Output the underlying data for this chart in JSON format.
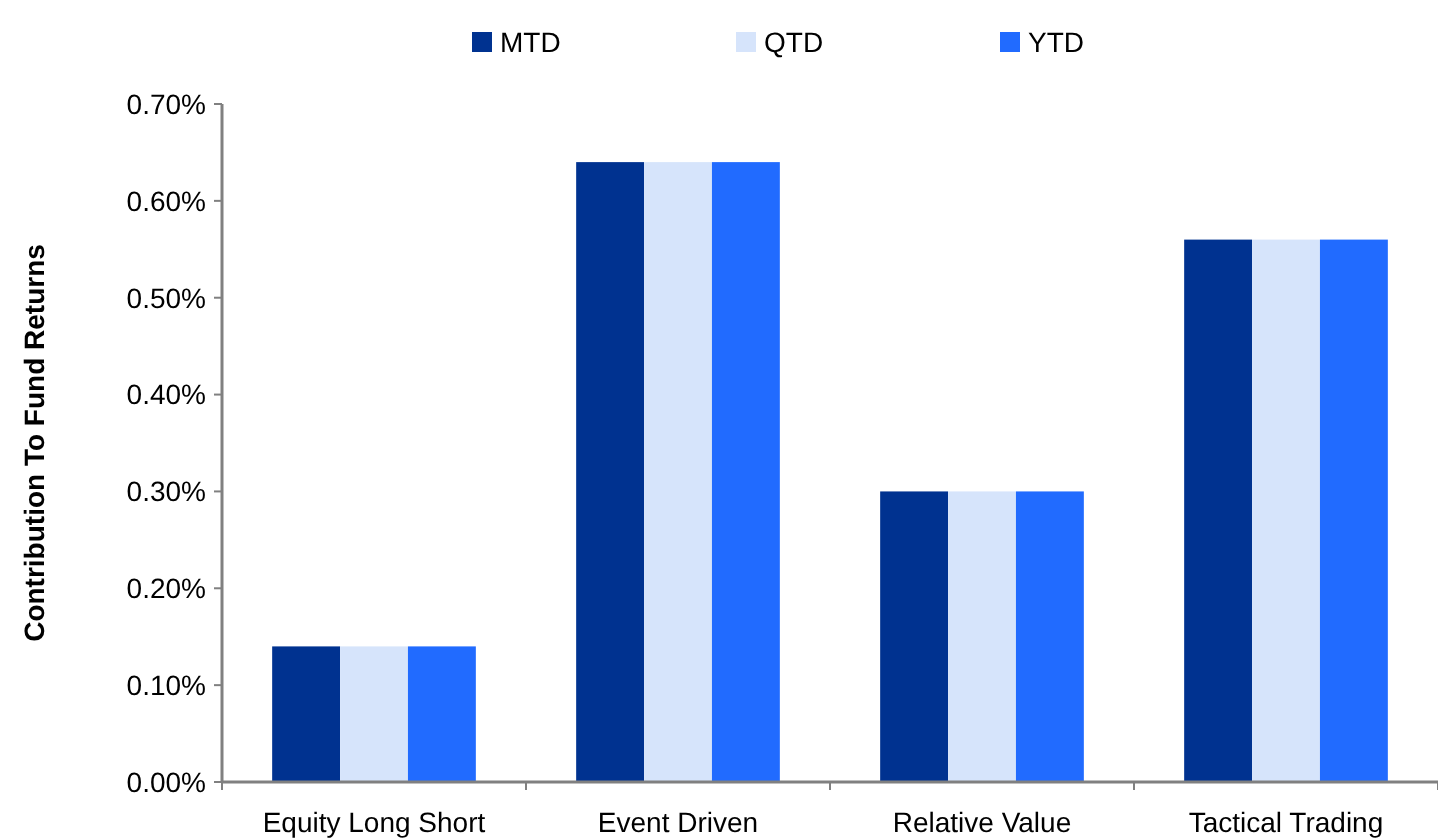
{
  "chart_data": {
    "type": "bar",
    "ylabel": "Contribution To Fund Returns",
    "categories": [
      "Equity Long Short",
      "Event Driven",
      "Relative Value",
      "Tactical Trading"
    ],
    "series": [
      {
        "name": "MTD",
        "color": "#003290",
        "values": [
          0.14,
          0.64,
          0.3,
          0.56
        ]
      },
      {
        "name": "QTD",
        "color": "#d6e4fb",
        "values": [
          0.14,
          0.64,
          0.3,
          0.56
        ]
      },
      {
        "name": "YTD",
        "color": "#216bff",
        "values": [
          0.14,
          0.64,
          0.3,
          0.56
        ]
      }
    ],
    "ylim": [
      0,
      0.7
    ],
    "yticks": [
      {
        "value": 0,
        "label": "0.00%"
      },
      {
        "value": 0.1,
        "label": "0.10%"
      },
      {
        "value": 0.2,
        "label": "0.20%"
      },
      {
        "value": 0.3,
        "label": "0.30%"
      },
      {
        "value": 0.4,
        "label": "0.40%"
      },
      {
        "value": 0.5,
        "label": "0.50%"
      },
      {
        "value": 0.6,
        "label": "0.60%"
      },
      {
        "value": 0.7,
        "label": "0.70%"
      }
    ],
    "grid": false,
    "legend": "top"
  }
}
